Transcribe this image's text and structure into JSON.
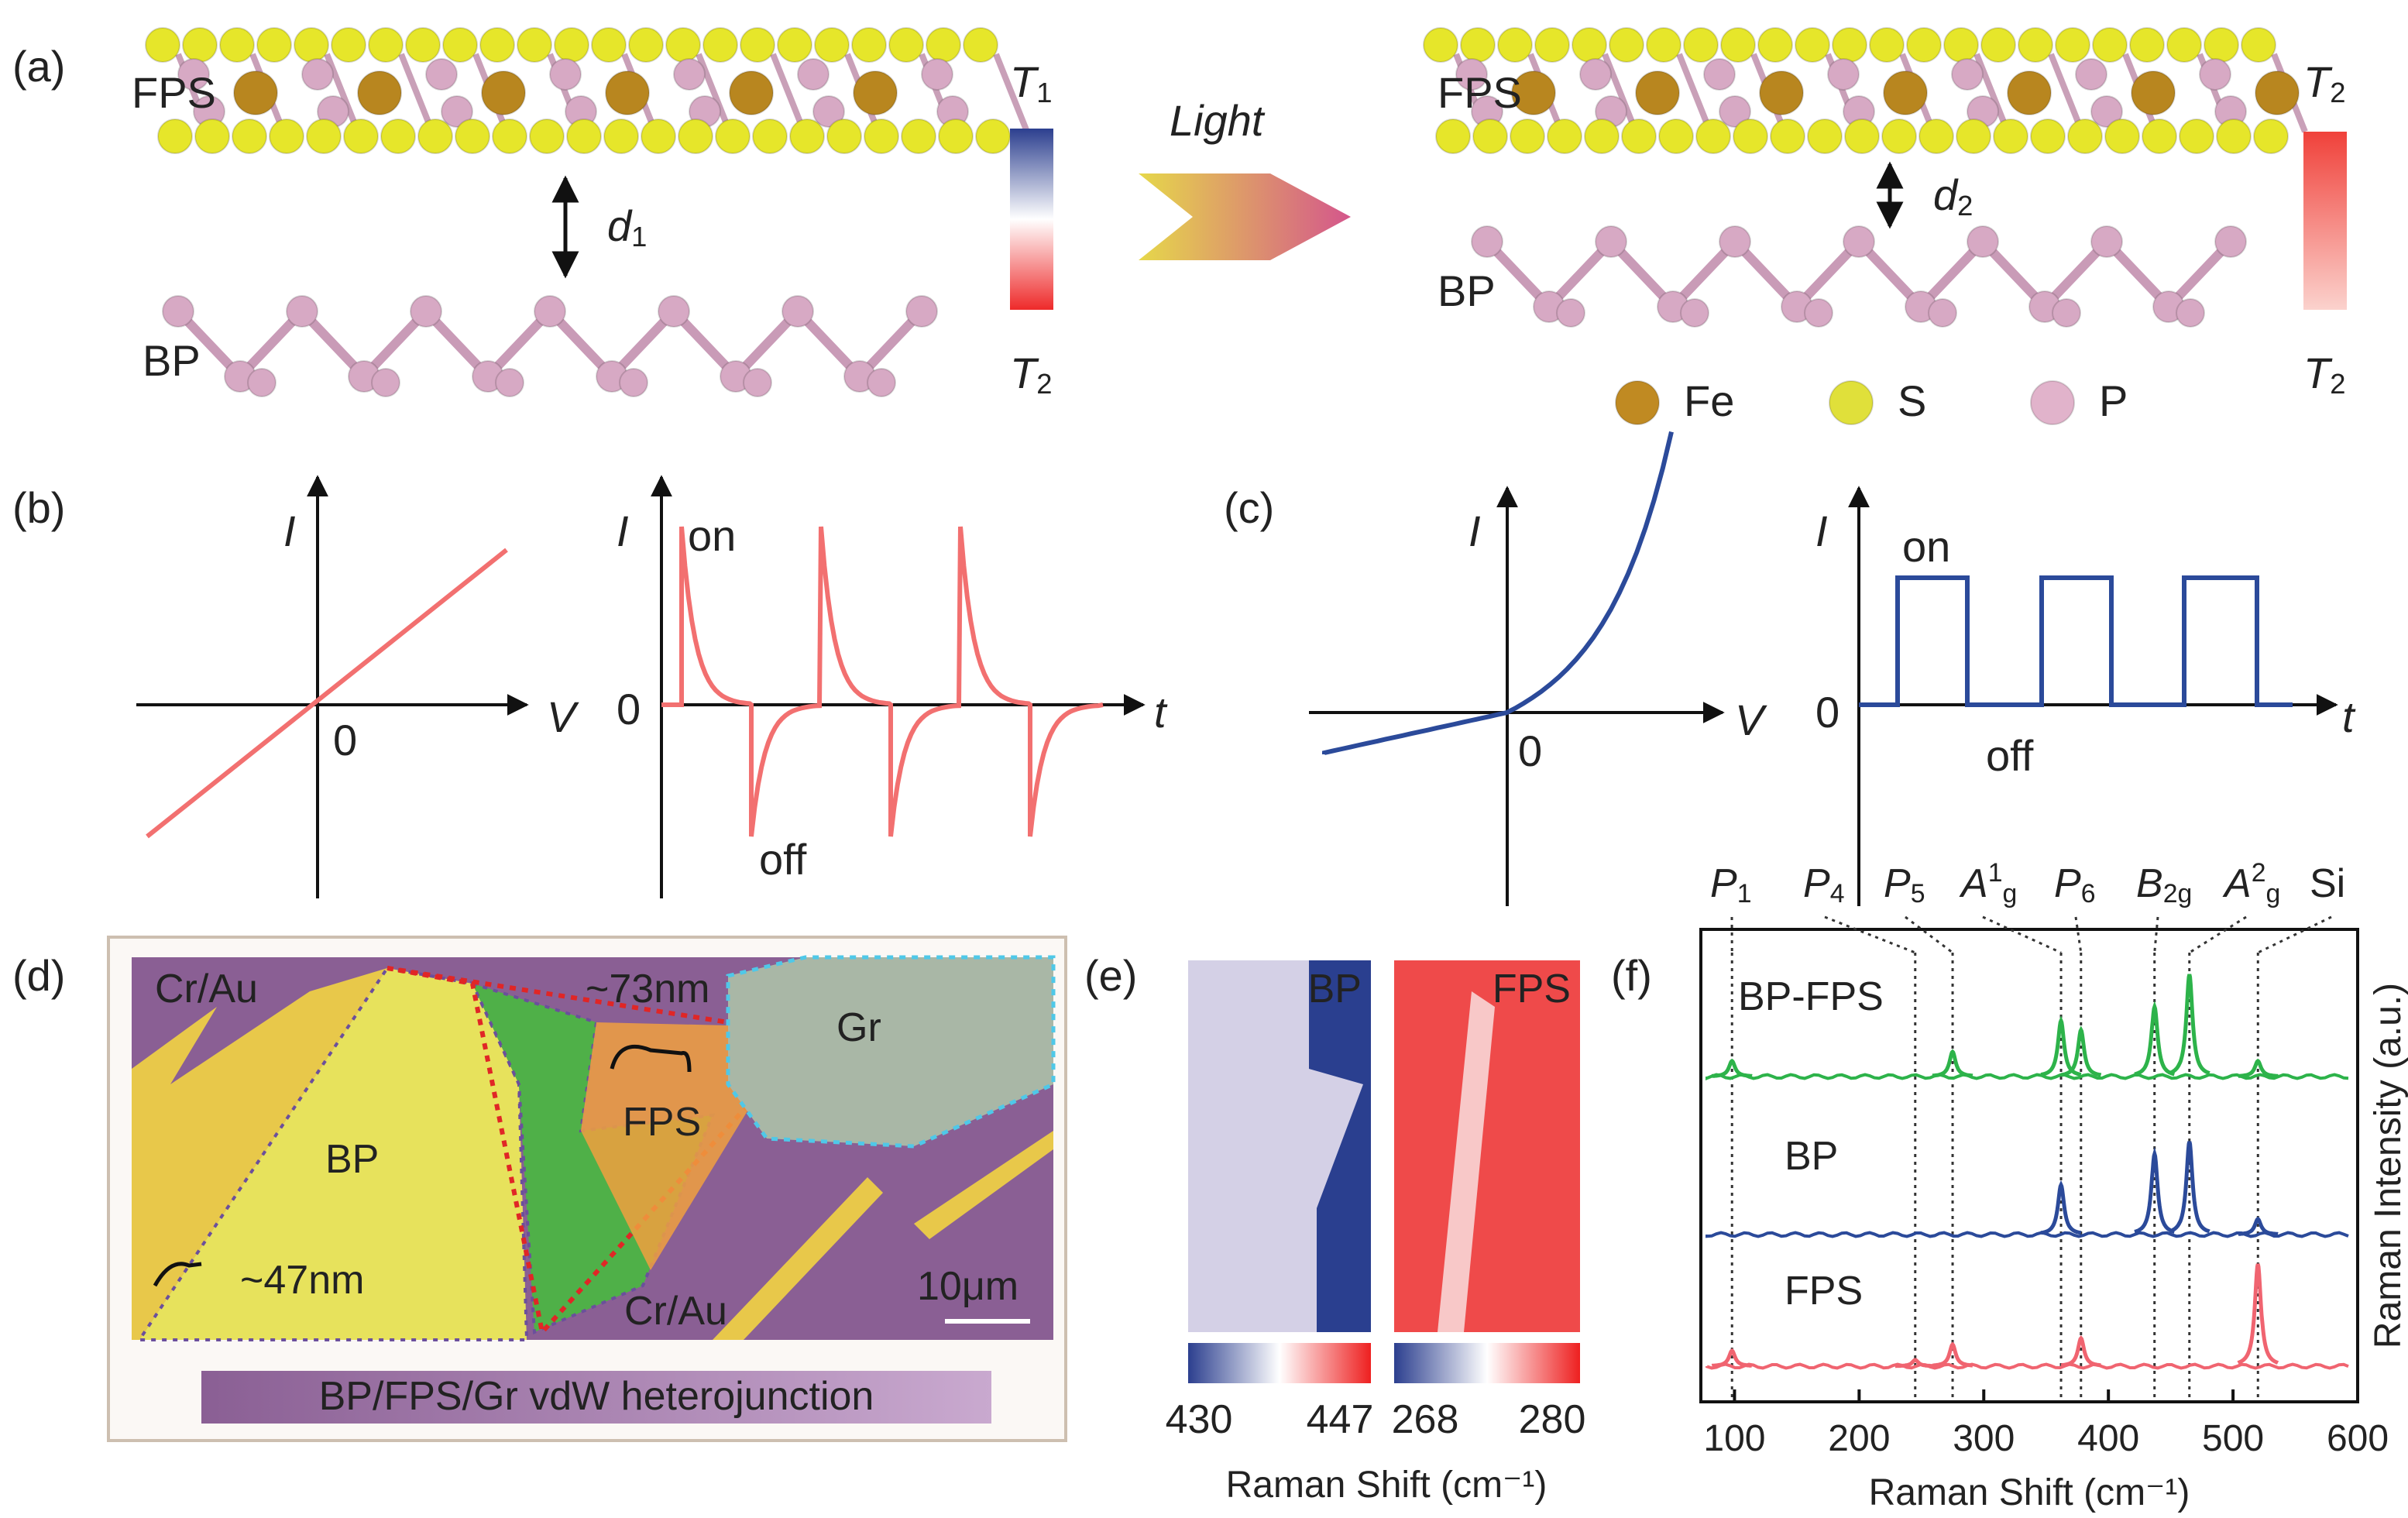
{
  "panel_labels": [
    "(a)",
    "(b)",
    "(c)",
    "(d)",
    "(e)",
    "(f)"
  ],
  "a": {
    "fps": "FPS",
    "bp": "BP",
    "light": "Light",
    "left": {
      "d": "d",
      "d_sub": "1",
      "top": "T",
      "top_sub": "1",
      "bottom": "T",
      "bottom_sub": "2"
    },
    "right": {
      "d": "d",
      "d_sub": "2",
      "top": "T",
      "top_sub": "2",
      "bottom": "T",
      "bottom_sub": "2"
    },
    "legend": [
      "Fe",
      "S",
      "P"
    ]
  },
  "b": {
    "iv": {
      "y": "I",
      "x": "V",
      "origin": "0"
    },
    "it": {
      "y": "I",
      "x": "t",
      "origin": "0",
      "on": "on",
      "off": "off"
    }
  },
  "c": {
    "iv": {
      "y": "I",
      "x": "V",
      "origin": "0"
    },
    "it": {
      "y": "I",
      "x": "t",
      "origin": "0",
      "on": "on",
      "off": "off"
    }
  },
  "d": {
    "cr_top": "Cr/Au",
    "bp": "BP",
    "fps": "FPS",
    "gr": "Gr",
    "t73": "~73nm",
    "t47": "~47nm",
    "scale": "10μm",
    "cr_bottom": "Cr/Au",
    "caption": "BP/FPS/Gr vdW heterojunction"
  },
  "e": {
    "maps": [
      {
        "title": "BP",
        "min": 430,
        "max": 447
      },
      {
        "title": "FPS",
        "min": 268,
        "max": 280
      }
    ],
    "xlabel": "Raman Shift (cm⁻¹)"
  },
  "chart_data": {
    "type": "spectra",
    "xlabel": "Raman Shift (cm⁻¹)",
    "ylabel": "Raman Intensity (a.u.)",
    "xlim": [
      73,
      600
    ],
    "xticks": [
      100,
      200,
      300,
      400,
      500,
      600
    ],
    "references": [
      {
        "x": 98,
        "symbol": "P",
        "sub": "1"
      },
      {
        "x": 245,
        "symbol": "P",
        "sub": "4"
      },
      {
        "x": 275,
        "symbol": "P",
        "sub": "5"
      },
      {
        "x": 362,
        "symbol": "A",
        "sub": "g",
        "sup": "1"
      },
      {
        "x": 378,
        "symbol": "P",
        "sub": "6"
      },
      {
        "x": 437,
        "symbol": "B",
        "sub": "2g"
      },
      {
        "x": 465,
        "symbol": "A",
        "sub": "g",
        "sup": "2"
      },
      {
        "x": 520,
        "symbol": "Si"
      }
    ],
    "series": [
      {
        "name": "BP-FPS",
        "color": "#2db34a",
        "x": [
          98,
          275,
          362,
          378,
          437,
          465,
          520
        ],
        "values": [
          10,
          16,
          36,
          30,
          45,
          66,
          10
        ]
      },
      {
        "name": "BP",
        "color": "#2b4a9a",
        "x": [
          362,
          437,
          465,
          520
        ],
        "values": [
          32,
          52,
          60,
          10
        ]
      },
      {
        "name": "FPS",
        "color": "#f06470",
        "x": [
          98,
          245,
          275,
          378,
          520
        ],
        "values": [
          10,
          4,
          14,
          18,
          66
        ]
      }
    ]
  }
}
